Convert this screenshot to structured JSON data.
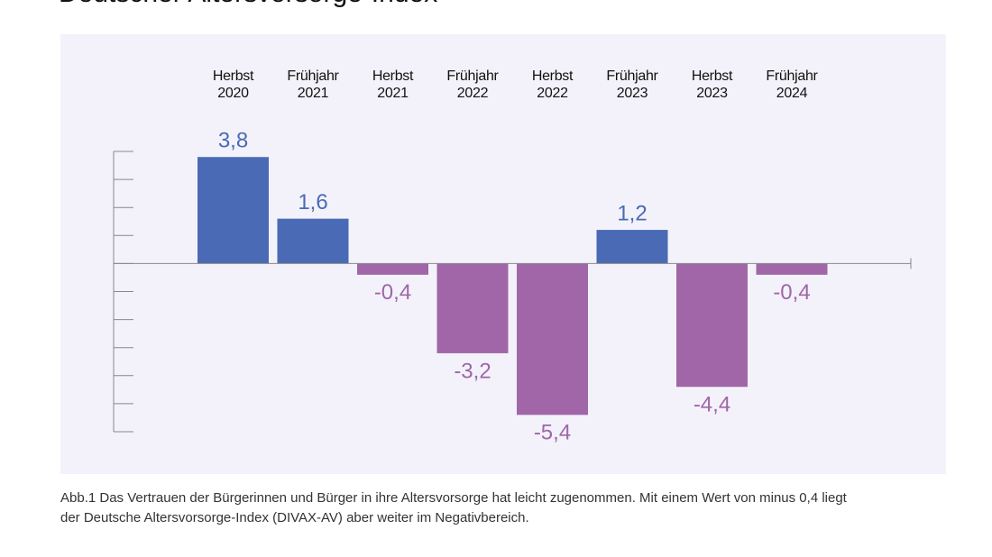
{
  "chart_data": {
    "type": "bar",
    "title": "Deutscher Altersvorsorge-Index",
    "categories": [
      [
        "Herbst",
        "2020"
      ],
      [
        "Frühjahr",
        "2021"
      ],
      [
        "Herbst",
        "2021"
      ],
      [
        "Frühjahr",
        "2022"
      ],
      [
        "Herbst",
        "2022"
      ],
      [
        "Frühjahr",
        "2023"
      ],
      [
        "Herbst",
        "2023"
      ],
      [
        "Frühjahr",
        "2024"
      ]
    ],
    "values": [
      3.8,
      1.6,
      -0.4,
      -3.2,
      -5.4,
      1.2,
      -4.4,
      -0.4
    ],
    "value_labels": [
      "3,8",
      "1,6",
      "-0,4",
      "-3,2",
      "-5,4",
      "1,2",
      "-4,4",
      "-0,4"
    ],
    "positive_color": "#4a6ab5",
    "negative_color": "#a066a8",
    "ylim": [
      -6,
      4
    ],
    "yticks": [
      -6,
      -5,
      -4,
      -3,
      -2,
      -1,
      0,
      1,
      2,
      3,
      4
    ],
    "caption": [
      "Abb.1 Das Vertrauen der Bürgerinnen und Bürger in ihre Altersvorsorge hat leicht zugenommen. Mit einem Wert von minus 0,4 liegt",
      "der Deutsche Altersvorsorge-Index (DIVAX-AV) aber weiter im Negativbereich."
    ]
  }
}
